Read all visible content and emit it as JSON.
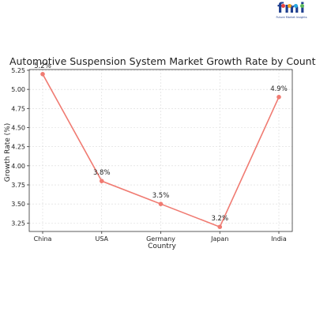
{
  "logo": {
    "mark": "fmi",
    "tagline": "Future Market Insights",
    "dot_colors": [
      "#e8423f",
      "#f4a21b",
      "#29a8e0",
      "#5cb85c"
    ]
  },
  "chart_data": {
    "type": "line",
    "title": "Automotive Suspension System Market Growth Rate by Country",
    "xlabel": "Country",
    "ylabel": "Growth Rate (%)",
    "categories": [
      "China",
      "USA",
      "Germany",
      "Japan",
      "India"
    ],
    "series": [
      {
        "values": [
          5.2,
          3.8,
          3.5,
          3.2,
          4.9
        ]
      }
    ],
    "data_labels": [
      "5.2%",
      "3.8%",
      "3.5%",
      "3.2%",
      "4.9%"
    ],
    "ylim": [
      3.14,
      5.26
    ],
    "yticks": [
      3.25,
      3.5,
      3.75,
      4.0,
      4.25,
      4.5,
      4.75,
      5.0,
      5.25
    ],
    "ytick_labels": [
      "3.25",
      "3.50",
      "3.75",
      "4.00",
      "4.25",
      "4.50",
      "4.75",
      "5.00",
      "5.25"
    ],
    "grid": true,
    "line_color": "#f07b72"
  }
}
